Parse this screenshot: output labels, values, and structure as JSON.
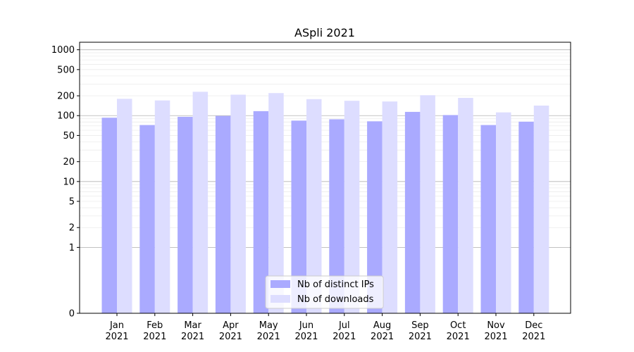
{
  "chart_data": {
    "type": "bar",
    "title": "ASpli 2021",
    "xlabel": "",
    "ylabel": "",
    "yscale": "symlog",
    "ylim": [
      0,
      1300
    ],
    "yticks": [
      0,
      1,
      2,
      5,
      10,
      20,
      50,
      100,
      200,
      500,
      1000
    ],
    "grid": true,
    "legend_position": "bottom-center",
    "categories": [
      {
        "month": "Jan",
        "year": "2021"
      },
      {
        "month": "Feb",
        "year": "2021"
      },
      {
        "month": "Mar",
        "year": "2021"
      },
      {
        "month": "Apr",
        "year": "2021"
      },
      {
        "month": "May",
        "year": "2021"
      },
      {
        "month": "Jun",
        "year": "2021"
      },
      {
        "month": "Jul",
        "year": "2021"
      },
      {
        "month": "Aug",
        "year": "2021"
      },
      {
        "month": "Sep",
        "year": "2021"
      },
      {
        "month": "Oct",
        "year": "2021"
      },
      {
        "month": "Nov",
        "year": "2021"
      },
      {
        "month": "Dec",
        "year": "2021"
      }
    ],
    "series": [
      {
        "name": "Nb of distinct IPs",
        "color": "#aaaaff",
        "values": [
          93,
          72,
          96,
          99,
          117,
          84,
          88,
          82,
          114,
          102,
          72,
          81
        ]
      },
      {
        "name": "Nb of downloads",
        "color": "#ddddff",
        "values": [
          180,
          170,
          230,
          208,
          220,
          178,
          168,
          164,
          204,
          186,
          112,
          142
        ]
      }
    ]
  }
}
